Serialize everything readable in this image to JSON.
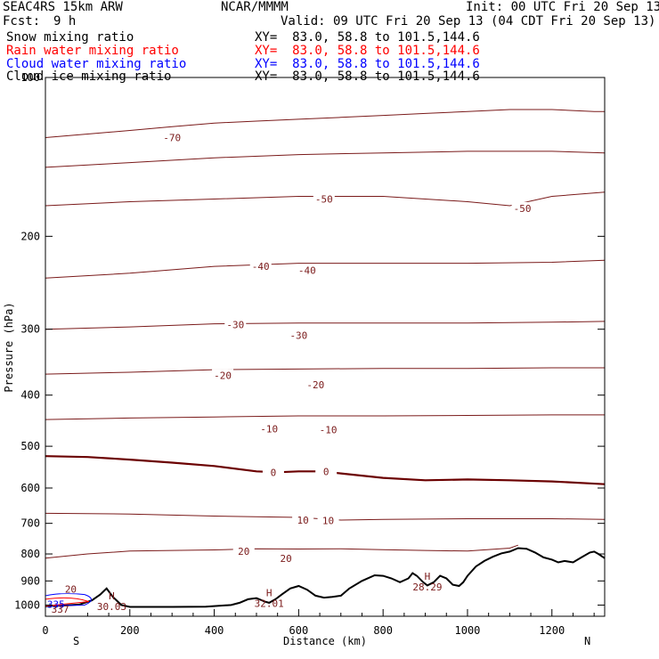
{
  "header": {
    "model": "SEAC4RS 15km ARW",
    "center": "NCAR/MMMM",
    "init": "Init: 00 UTC Fri 20 Sep 13",
    "fcst_label": "Fcst:",
    "fcst_value": "9 h",
    "valid": "Valid: 09 UTC Fri 20 Sep 13 (04 CDT Fri 20 Sep 13)"
  },
  "legend": [
    {
      "label": "Snow mixing ratio",
      "xy": "XY=  83.0, 58.8 to 101.5,144.6",
      "color": "#000000"
    },
    {
      "label": "Rain water mixing ratio",
      "xy": "XY=  83.0, 58.8 to 101.5,144.6",
      "color": "#ff0000"
    },
    {
      "label": "Cloud water mixing ratio",
      "xy": "XY=  83.0, 58.8 to 101.5,144.6",
      "color": "#0000ff"
    },
    {
      "label": "Cloud ice mixing ratio",
      "xy": "XY=  83.0, 58.8 to 101.5,144.6",
      "color": "#000000"
    }
  ],
  "colors": {
    "isotherm": "#7a1a1a",
    "zero_isotherm": "#6b0000",
    "terrain": "#000000",
    "cloud_water": "#0000ff",
    "rain_water": "#ff0000",
    "snow": "#000000"
  },
  "chart_data": {
    "type": "line",
    "xlabel": "Distance (km)",
    "ylabel": "Pressure (hPa)",
    "xlim": [
      0,
      1325
    ],
    "ylim": [
      1050,
      100
    ],
    "yscale": "log",
    "grid": false,
    "x_ticks": [
      0,
      200,
      400,
      600,
      800,
      1000,
      1200
    ],
    "x_tick_labels": [
      "0",
      "200",
      "400",
      "600",
      "800",
      "1000",
      "1200"
    ],
    "y_ticks": [
      100,
      200,
      300,
      400,
      500,
      600,
      700,
      800,
      900,
      1000
    ],
    "y_tick_labels": [
      "100",
      "200",
      "300",
      "400",
      "500",
      "600",
      "700",
      "800",
      "900",
      "1000"
    ],
    "end_labels": {
      "left": "S",
      "right": "N"
    },
    "terrain": {
      "x": [
        0,
        40,
        80,
        110,
        130,
        145,
        160,
        180,
        200,
        240,
        300,
        380,
        440,
        460,
        480,
        500,
        520,
        530,
        545,
        560,
        580,
        600,
        620,
        640,
        660,
        680,
        700,
        720,
        750,
        780,
        800,
        820,
        840,
        860,
        870,
        880,
        895,
        905,
        920,
        935,
        950,
        965,
        980,
        990,
        1000,
        1020,
        1040,
        1060,
        1080,
        1100,
        1120,
        1140,
        1160,
        1180,
        1200,
        1215,
        1230,
        1250,
        1270,
        1290,
        1300,
        1310,
        1325
      ],
      "y": [
        1005,
        1002,
        998,
        980,
        955,
        930,
        965,
        1000,
        1008,
        1008,
        1008,
        1007,
        1000,
        990,
        975,
        970,
        985,
        990,
        975,
        955,
        930,
        920,
        935,
        960,
        968,
        965,
        960,
        930,
        900,
        878,
        880,
        890,
        905,
        890,
        870,
        880,
        905,
        918,
        905,
        880,
        890,
        915,
        920,
        905,
        880,
        845,
        825,
        810,
        798,
        792,
        780,
        782,
        795,
        812,
        820,
        830,
        825,
        830,
        812,
        795,
        792,
        800,
        815
      ]
    },
    "isotherms": [
      {
        "level": -70,
        "x": [
          0,
          100,
          200,
          300,
          400,
          500,
          600,
          700,
          800,
          900,
          1000,
          1100,
          1200,
          1300,
          1325
        ],
        "y": [
          130,
          128,
          126,
          124,
          122,
          121,
          120,
          119,
          118,
          117,
          116,
          115,
          115,
          116,
          116
        ]
      },
      {
        "level": -60,
        "x": [
          0,
          200,
          400,
          600,
          800,
          1000,
          1200,
          1325
        ],
        "y": [
          148,
          145,
          142,
          140,
          139,
          138,
          138,
          139
        ]
      },
      {
        "level": -50,
        "x": [
          0,
          200,
          400,
          600,
          800,
          1000,
          1100,
          1200,
          1325
        ],
        "y": [
          175,
          172,
          170,
          168,
          168,
          172,
          175,
          168,
          165
        ]
      },
      {
        "level": -40,
        "x": [
          0,
          200,
          400,
          600,
          800,
          1000,
          1200,
          1325
        ],
        "y": [
          240,
          235,
          228,
          225,
          225,
          225,
          224,
          222
        ]
      },
      {
        "level": -30,
        "x": [
          0,
          200,
          400,
          600,
          800,
          1000,
          1200,
          1325
        ],
        "y": [
          300,
          297,
          293,
          292,
          292,
          292,
          291,
          290
        ]
      },
      {
        "level": -20,
        "x": [
          0,
          200,
          400,
          600,
          800,
          1000,
          1200,
          1325
        ],
        "y": [
          365,
          362,
          358,
          357,
          356,
          356,
          355,
          355
        ]
      },
      {
        "level": -10,
        "x": [
          0,
          200,
          400,
          600,
          800,
          1000,
          1200,
          1325
        ],
        "y": [
          445,
          442,
          440,
          438,
          438,
          437,
          436,
          436
        ]
      },
      {
        "level": 0,
        "x": [
          0,
          100,
          200,
          300,
          400,
          500,
          550,
          600,
          650,
          700,
          800,
          900,
          1000,
          1100,
          1200,
          1325
        ],
        "y": [
          522,
          524,
          530,
          537,
          545,
          558,
          560,
          558,
          558,
          563,
          574,
          580,
          578,
          580,
          583,
          590
        ]
      },
      {
        "level": 10,
        "x": [
          0,
          200,
          400,
          600,
          700,
          800,
          1000,
          1200,
          1325
        ],
        "y": [
          670,
          672,
          678,
          682,
          690,
          688,
          686,
          686,
          688
        ]
      },
      {
        "level": 20,
        "x": [
          0,
          100,
          200,
          300,
          400,
          500,
          600,
          700,
          800,
          900,
          1000,
          1100,
          1120
        ],
        "y": [
          815,
          800,
          790,
          788,
          786,
          782,
          783,
          782,
          785,
          788,
          790,
          780,
          770
        ]
      }
    ],
    "contour_labels": [
      {
        "text": "-70",
        "x": 300,
        "y": 130
      },
      {
        "text": "-50",
        "x": 660,
        "y": 170
      },
      {
        "text": "-50",
        "x": 1130,
        "y": 177
      },
      {
        "text": "-40",
        "x": 510,
        "y": 228
      },
      {
        "text": "-40",
        "x": 620,
        "y": 232
      },
      {
        "text": "-30",
        "x": 450,
        "y": 294
      },
      {
        "text": "-30",
        "x": 600,
        "y": 308
      },
      {
        "text": "-20",
        "x": 420,
        "y": 367
      },
      {
        "text": "-20",
        "x": 640,
        "y": 382
      },
      {
        "text": "-10",
        "x": 530,
        "y": 463
      },
      {
        "text": "-10",
        "x": 670,
        "y": 465
      },
      {
        "text": "0",
        "x": 540,
        "y": 560
      },
      {
        "text": "0",
        "x": 665,
        "y": 558
      },
      {
        "text": "10",
        "x": 610,
        "y": 690
      },
      {
        "text": "10",
        "x": 670,
        "y": 692
      },
      {
        "text": "20",
        "x": 470,
        "y": 790
      },
      {
        "text": "20",
        "x": 570,
        "y": 815
      },
      {
        "text": "20",
        "x": 60,
        "y": 932
      }
    ],
    "highs": [
      {
        "label": "H",
        "value": "30.03",
        "x": 157,
        "y": 975
      },
      {
        "label": "H",
        "value": "32.01",
        "x": 530,
        "y": 963
      },
      {
        "label": "H",
        "value": "28.29",
        "x": 905,
        "y": 895
      }
    ],
    "surface_labels": [
      {
        "text": "335",
        "x": 25,
        "y": 997,
        "color": "#0000ff"
      },
      {
        "text": "337",
        "x": 35,
        "y": 1018,
        "color": "#7a1a1a"
      }
    ]
  }
}
